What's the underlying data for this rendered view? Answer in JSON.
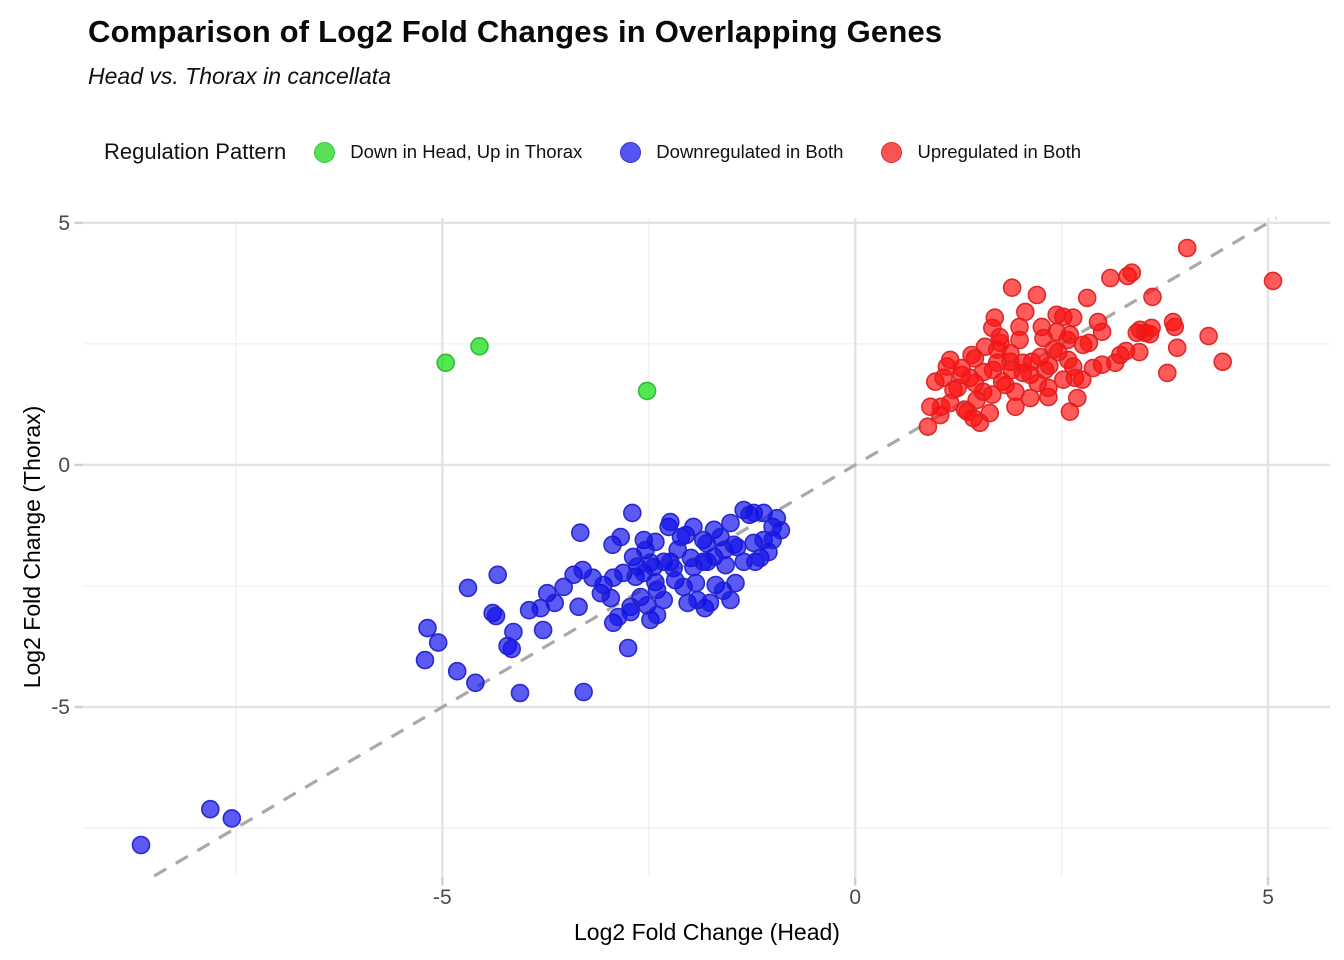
{
  "header": {
    "title": "Comparison of Log2 Fold Changes in Overlapping Genes",
    "subtitle": "Head vs. Thorax in cancellata"
  },
  "legend": {
    "title": "Regulation Pattern",
    "items": [
      {
        "label": "Down in Head, Up in Thorax",
        "fill": "#00dd00",
        "stroke": "#2eb82e",
        "swatch": "#58e058",
        "swatch_border": "#3cc43c"
      },
      {
        "label": "Downregulated in Both",
        "fill": "#0d0dee",
        "stroke": "#2222cc",
        "swatch": "#5456f0",
        "swatch_border": "#3333cc"
      },
      {
        "label": "Upregulated in Both",
        "fill": "#ff0d0d",
        "stroke": "#dd2222",
        "swatch": "#f85454",
        "swatch_border": "#dd2a2a"
      }
    ]
  },
  "chart_data": {
    "type": "scatter",
    "title": "Comparison of Log2 Fold Changes in Overlapping Genes",
    "subtitle": "Head vs. Thorax in cancellata",
    "xlabel": "Log2 Fold Change (Head)",
    "ylabel": "Log2 Fold Change (Thorax)",
    "xlim": [
      -9.34,
      5.75
    ],
    "ylim": [
      -8.49,
      5.1
    ],
    "x_major_ticks": [
      -5,
      0,
      5
    ],
    "y_major_ticks": [
      -5,
      0,
      5
    ],
    "x_minor_gridlines": [
      -7.5,
      -2.5,
      2.5
    ],
    "y_minor_gridlines": [
      -7.5,
      -2.5,
      2.5
    ],
    "grid": "on",
    "legend_position": "top",
    "reference_line": {
      "equation": "y = x",
      "style": "dashed",
      "color": "#a9a9a9"
    },
    "series": [
      {
        "name": "Down in Head, Up in Thorax",
        "fill": "#00dd00",
        "stroke": "#2eb82e",
        "points": [
          [
            -4.96,
            2.11
          ],
          [
            -4.55,
            2.45
          ],
          [
            -2.52,
            1.53
          ]
        ]
      },
      {
        "name": "Downregulated in Both",
        "fill": "#0d0dee",
        "stroke": "#2222cc",
        "points": [
          [
            -8.65,
            -7.85
          ],
          [
            -7.81,
            -7.11
          ],
          [
            -7.55,
            -7.3
          ],
          [
            -5.21,
            -4.03
          ],
          [
            -5.18,
            -3.37
          ],
          [
            -5.05,
            -3.67
          ],
          [
            -4.82,
            -4.26
          ],
          [
            -4.69,
            -2.54
          ],
          [
            -4.6,
            -4.5
          ],
          [
            -4.39,
            -3.06
          ],
          [
            -4.35,
            -3.12
          ],
          [
            -4.33,
            -2.27
          ],
          [
            -4.21,
            -3.74
          ],
          [
            -4.16,
            -3.8
          ],
          [
            -4.14,
            -3.45
          ],
          [
            -4.06,
            -4.71
          ],
          [
            -3.95,
            -3.0
          ],
          [
            -3.81,
            -2.96
          ],
          [
            -3.78,
            -3.41
          ],
          [
            -3.73,
            -2.65
          ],
          [
            -3.64,
            -2.85
          ],
          [
            -3.53,
            -2.52
          ],
          [
            -3.41,
            -2.27
          ],
          [
            -3.35,
            -2.93
          ],
          [
            -3.33,
            -1.4
          ],
          [
            -3.3,
            -2.17
          ],
          [
            -3.29,
            -4.69
          ],
          [
            -3.18,
            -2.33
          ],
          [
            -3.08,
            -2.65
          ],
          [
            -3.05,
            -2.48
          ],
          [
            -2.96,
            -2.75
          ],
          [
            -2.94,
            -1.65
          ],
          [
            -2.93,
            -2.33
          ],
          [
            -2.93,
            -3.26
          ],
          [
            -2.87,
            -3.14
          ],
          [
            -2.84,
            -1.49
          ],
          [
            -2.81,
            -2.23
          ],
          [
            -2.75,
            -3.78
          ],
          [
            -2.72,
            -2.93
          ],
          [
            -2.72,
            -3.04
          ],
          [
            -2.7,
            -0.99
          ],
          [
            -2.69,
            -1.9
          ],
          [
            -2.66,
            -2.31
          ],
          [
            -2.64,
            -2.1
          ],
          [
            -2.6,
            -2.73
          ],
          [
            -2.56,
            -1.55
          ],
          [
            -2.56,
            -2.23
          ],
          [
            -2.54,
            -1.76
          ],
          [
            -2.52,
            -2.9
          ],
          [
            -2.48,
            -2.02
          ],
          [
            -2.48,
            -3.2
          ],
          [
            -2.44,
            -2.11
          ],
          [
            -2.42,
            -1.59
          ],
          [
            -2.42,
            -2.42
          ],
          [
            -2.4,
            -2.58
          ],
          [
            -2.4,
            -3.1
          ],
          [
            -2.32,
            -2.0
          ],
          [
            -2.32,
            -2.79
          ],
          [
            -2.26,
            -1.28
          ],
          [
            -2.24,
            -1.18
          ],
          [
            -2.24,
            -2.0
          ],
          [
            -2.2,
            -2.13
          ],
          [
            -2.18,
            -2.38
          ],
          [
            -2.15,
            -1.75
          ],
          [
            -2.11,
            -1.49
          ],
          [
            -2.08,
            -2.52
          ],
          [
            -2.05,
            -1.45
          ],
          [
            -2.03,
            -2.85
          ],
          [
            -1.99,
            -1.92
          ],
          [
            -1.96,
            -1.28
          ],
          [
            -1.96,
            -2.11
          ],
          [
            -1.93,
            -2.44
          ],
          [
            -1.91,
            -2.79
          ],
          [
            -1.84,
            -1.55
          ],
          [
            -1.84,
            -2.0
          ],
          [
            -1.82,
            -2.96
          ],
          [
            -1.8,
            -1.62
          ],
          [
            -1.79,
            -2.0
          ],
          [
            -1.76,
            -2.85
          ],
          [
            -1.71,
            -1.34
          ],
          [
            -1.71,
            -1.9
          ],
          [
            -1.69,
            -2.48
          ],
          [
            -1.63,
            -1.49
          ],
          [
            -1.6,
            -2.6
          ],
          [
            -1.59,
            -1.76
          ],
          [
            -1.57,
            -2.07
          ],
          [
            -1.51,
            -1.2
          ],
          [
            -1.51,
            -2.79
          ],
          [
            -1.47,
            -1.65
          ],
          [
            -1.45,
            -2.44
          ],
          [
            -1.43,
            -1.7
          ],
          [
            -1.35,
            -0.93
          ],
          [
            -1.35,
            -2.0
          ],
          [
            -1.28,
            -1.03
          ],
          [
            -1.23,
            -0.99
          ],
          [
            -1.23,
            -1.61
          ],
          [
            -1.21,
            -2.0
          ],
          [
            -1.15,
            -1.92
          ],
          [
            -1.11,
            -0.99
          ],
          [
            -1.11,
            -1.55
          ],
          [
            -1.05,
            -1.8
          ],
          [
            -1.0,
            -1.28
          ],
          [
            -1.0,
            -1.55
          ],
          [
            -0.95,
            -1.1
          ],
          [
            -0.9,
            -1.35
          ]
        ]
      },
      {
        "name": "Upregulated in Both",
        "fill": "#ff0d0d",
        "stroke": "#dd2222",
        "points": [
          [
            0.88,
            0.79
          ],
          [
            0.91,
            1.2
          ],
          [
            0.97,
            1.72
          ],
          [
            1.03,
            1.03
          ],
          [
            1.04,
            1.2
          ],
          [
            1.07,
            1.8
          ],
          [
            1.11,
            2.03
          ],
          [
            1.15,
            1.28
          ],
          [
            1.15,
            2.17
          ],
          [
            1.19,
            1.55
          ],
          [
            1.24,
            1.59
          ],
          [
            1.29,
            1.86
          ],
          [
            1.29,
            2.0
          ],
          [
            1.33,
            1.14
          ],
          [
            1.36,
            1.1
          ],
          [
            1.39,
            1.8
          ],
          [
            1.41,
            2.27
          ],
          [
            1.43,
            0.97
          ],
          [
            1.45,
            1.69
          ],
          [
            1.45,
            2.2
          ],
          [
            1.47,
            1.34
          ],
          [
            1.51,
            0.87
          ],
          [
            1.55,
            1.51
          ],
          [
            1.55,
            1.92
          ],
          [
            1.57,
            2.44
          ],
          [
            1.63,
            1.07
          ],
          [
            1.66,
            1.45
          ],
          [
            1.66,
            2.83
          ],
          [
            1.67,
            1.96
          ],
          [
            1.69,
            3.04
          ],
          [
            1.72,
            2.11
          ],
          [
            1.72,
            2.38
          ],
          [
            1.75,
            2.64
          ],
          [
            1.76,
            2.52
          ],
          [
            1.78,
            1.72
          ],
          [
            1.82,
            1.65
          ],
          [
            1.88,
            2.13
          ],
          [
            1.88,
            2.31
          ],
          [
            1.9,
            1.96
          ],
          [
            1.9,
            3.66
          ],
          [
            1.94,
            1.2
          ],
          [
            1.94,
            1.51
          ],
          [
            1.99,
            2.58
          ],
          [
            1.99,
            2.85
          ],
          [
            2.03,
            1.9
          ],
          [
            2.03,
            2.11
          ],
          [
            2.06,
            3.16
          ],
          [
            2.12,
            1.38
          ],
          [
            2.12,
            1.86
          ],
          [
            2.14,
            2.13
          ],
          [
            2.2,
            3.51
          ],
          [
            2.21,
            1.69
          ],
          [
            2.24,
            2.23
          ],
          [
            2.26,
            2.85
          ],
          [
            2.28,
            2.62
          ],
          [
            2.3,
            1.96
          ],
          [
            2.34,
            1.4
          ],
          [
            2.34,
            1.59
          ],
          [
            2.35,
            2.05
          ],
          [
            2.4,
            2.38
          ],
          [
            2.44,
            2.75
          ],
          [
            2.44,
            3.1
          ],
          [
            2.46,
            2.33
          ],
          [
            2.52,
            1.76
          ],
          [
            2.52,
            3.06
          ],
          [
            2.57,
            2.58
          ],
          [
            2.58,
            2.17
          ],
          [
            2.6,
            1.1
          ],
          [
            2.6,
            2.69
          ],
          [
            2.64,
            2.03
          ],
          [
            2.64,
            3.04
          ],
          [
            2.66,
            1.8
          ],
          [
            2.69,
            1.38
          ],
          [
            2.75,
            1.76
          ],
          [
            2.76,
            2.48
          ],
          [
            2.81,
            3.45
          ],
          [
            2.83,
            2.52
          ],
          [
            2.88,
            2.0
          ],
          [
            2.94,
            2.95
          ],
          [
            2.99,
            2.07
          ],
          [
            2.99,
            2.75
          ],
          [
            3.09,
            3.86
          ],
          [
            3.15,
            2.11
          ],
          [
            3.21,
            2.27
          ],
          [
            3.28,
            2.35
          ],
          [
            3.3,
            3.9
          ],
          [
            3.35,
            3.97
          ],
          [
            3.41,
            2.73
          ],
          [
            3.44,
            2.33
          ],
          [
            3.45,
            2.79
          ],
          [
            3.51,
            2.73
          ],
          [
            3.57,
            2.7
          ],
          [
            3.59,
            2.83
          ],
          [
            3.6,
            3.47
          ],
          [
            3.78,
            1.9
          ],
          [
            3.85,
            2.95
          ],
          [
            3.87,
            2.85
          ],
          [
            3.9,
            2.42
          ],
          [
            4.02,
            4.48
          ],
          [
            4.28,
            2.66
          ],
          [
            4.45,
            2.13
          ],
          [
            5.06,
            3.8
          ]
        ]
      }
    ]
  },
  "style_colors": {
    "major_gridline": "#e3e3e3",
    "minor_gridline": "#f0f0f0",
    "tick_mark": "#d0d0d0",
    "tick_label": "#4a4a4a",
    "reference_line": "#a9a9a9"
  }
}
